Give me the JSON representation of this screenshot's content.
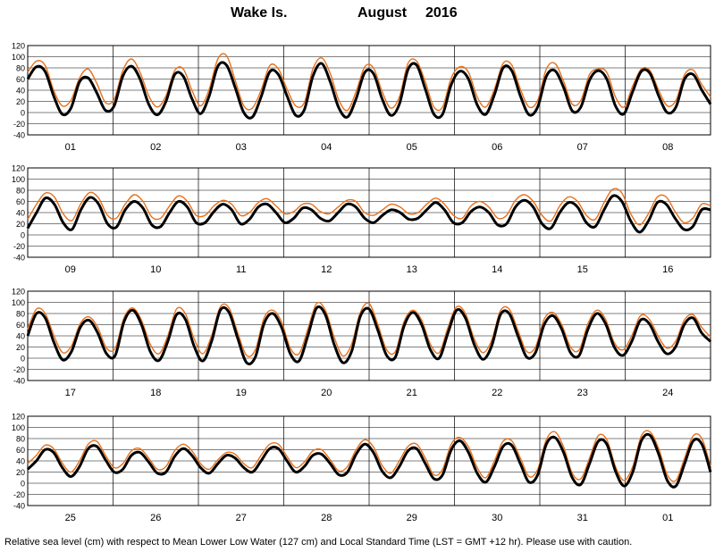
{
  "title": {
    "location": "Wake Is.",
    "month": "August",
    "year": "2016"
  },
  "footer": "Relative sea level (cm) with respect to Mean Lower Low Water (127 cm) and Local Standard Time (LST = GMT +12 hr). Please use with caution.",
  "colors": {
    "observed": "#000000",
    "predicted": "#e8701a",
    "grid": "#000000"
  },
  "chart_data": {
    "type": "line",
    "ylim": [
      -40,
      120
    ],
    "yticks": [
      -40,
      -20,
      0,
      20,
      40,
      60,
      80,
      100,
      120
    ],
    "grid": true,
    "panels": [
      {
        "day_labels": [
          "01",
          "02",
          "03",
          "04",
          "05",
          "06",
          "07",
          "08"
        ],
        "series": [
          {
            "values": [
              60,
              82,
              74,
              30,
              -3,
              8,
              55,
              62,
              35,
              4,
              12,
              65,
              83,
              60,
              15,
              -4,
              20,
              68,
              65,
              25,
              -2,
              30,
              83,
              85,
              45,
              0,
              -8,
              28,
              73,
              68,
              30,
              -5,
              5,
              65,
              88,
              55,
              8,
              -8,
              25,
              72,
              70,
              25,
              -5,
              15,
              77,
              85,
              42,
              -3,
              -3,
              50,
              74,
              60,
              14,
              -3,
              32,
              80,
              75,
              30,
              -4,
              10,
              65,
              75,
              45,
              3,
              10,
              58,
              75,
              60,
              12,
              -2,
              38,
              74,
              70,
              30,
              0,
              10,
              60,
              68,
              40,
              15
            ]
          },
          {
            "values": [
              72,
              92,
              85,
              40,
              12,
              22,
              62,
              78,
              52,
              18,
              24,
              75,
              96,
              72,
              30,
              10,
              30,
              75,
              78,
              40,
              12,
              42,
              96,
              102,
              58,
              12,
              8,
              40,
              84,
              78,
              42,
              12,
              18,
              78,
              98,
              70,
              22,
              4,
              38,
              82,
              80,
              38,
              8,
              28,
              88,
              92,
              55,
              10,
              10,
              62,
              82,
              72,
              28,
              10,
              42,
              88,
              85,
              42,
              10,
              22,
              78,
              88,
              56,
              15,
              22,
              68,
              78,
              72,
              28,
              10,
              48,
              78,
              75,
              40,
              12,
              22,
              68,
              76,
              50,
              28
            ]
          }
        ]
      },
      {
        "day_labels": [
          "09",
          "10",
          "11",
          "12",
          "13",
          "14",
          "15",
          "16"
        ],
        "series": [
          {
            "values": [
              12,
              40,
              66,
              55,
              22,
              10,
              45,
              67,
              55,
              20,
              14,
              45,
              60,
              48,
              18,
              15,
              40,
              60,
              50,
              22,
              22,
              42,
              55,
              45,
              20,
              28,
              50,
              55,
              40,
              22,
              30,
              48,
              45,
              30,
              25,
              40,
              55,
              50,
              30,
              22,
              35,
              45,
              40,
              28,
              30,
              45,
              58,
              45,
              22,
              22,
              42,
              50,
              40,
              18,
              20,
              50,
              62,
              50,
              20,
              12,
              40,
              58,
              50,
              22,
              15,
              45,
              70,
              60,
              25,
              5,
              25,
              58,
              55,
              30,
              10,
              15,
              45,
              45
            ]
          },
          {
            "values": [
              28,
              55,
              75,
              68,
              38,
              26,
              56,
              76,
              66,
              35,
              30,
              55,
              72,
              60,
              32,
              30,
              52,
              70,
              60,
              35,
              35,
              52,
              62,
              55,
              35,
              40,
              58,
              65,
              52,
              38,
              42,
              55,
              55,
              42,
              38,
              50,
              62,
              60,
              40,
              35,
              45,
              55,
              50,
              38,
              40,
              55,
              66,
              55,
              35,
              30,
              52,
              60,
              50,
              30,
              35,
              62,
              72,
              60,
              35,
              25,
              52,
              68,
              60,
              35,
              28,
              58,
              82,
              75,
              38,
              18,
              38,
              68,
              68,
              42,
              22,
              30,
              55,
              52
            ]
          }
        ]
      },
      {
        "day_labels": [
          "17",
          "18",
          "19",
          "20",
          "21",
          "22",
          "23",
          "24"
        ],
        "series": [
          {
            "values": [
              40,
              80,
              72,
              28,
              -3,
              12,
              55,
              68,
              45,
              8,
              5,
              65,
              86,
              60,
              12,
              -4,
              30,
              78,
              70,
              22,
              -5,
              30,
              86,
              82,
              35,
              -8,
              2,
              62,
              80,
              55,
              8,
              -5,
              40,
              90,
              78,
              25,
              -8,
              12,
              75,
              88,
              50,
              5,
              2,
              58,
              82,
              60,
              15,
              0,
              45,
              86,
              72,
              25,
              -2,
              22,
              78,
              80,
              40,
              2,
              10,
              60,
              76,
              52,
              10,
              5,
              52,
              80,
              62,
              20,
              5,
              30,
              68,
              62,
              30,
              8,
              20,
              60,
              72,
              45,
              30
            ]
          },
          {
            "values": [
              52,
              88,
              80,
              40,
              10,
              22,
              62,
              74,
              55,
              18,
              18,
              72,
              90,
              68,
              25,
              8,
              40,
              88,
              80,
              35,
              8,
              40,
              92,
              90,
              45,
              5,
              15,
              72,
              86,
              65,
              18,
              8,
              52,
              98,
              86,
              38,
              4,
              25,
              82,
              98,
              60,
              15,
              12,
              66,
              86,
              68,
              25,
              10,
              55,
              92,
              80,
              35,
              10,
              32,
              85,
              88,
              50,
              12,
              20,
              70,
              82,
              60,
              20,
              15,
              62,
              86,
              70,
              28,
              15,
              40,
              76,
              70,
              40,
              18,
              30,
              68,
              78,
              55,
              38
            ]
          }
        ]
      },
      {
        "day_labels": [
          "25",
          "26",
          "27",
          "28",
          "29",
          "30",
          "31",
          "01"
        ],
        "series": [
          {
            "values": [
              25,
              40,
              60,
              55,
              28,
              12,
              30,
              62,
              66,
              42,
              20,
              25,
              50,
              55,
              38,
              18,
              20,
              48,
              62,
              50,
              28,
              18,
              35,
              50,
              45,
              28,
              20,
              40,
              62,
              62,
              40,
              20,
              30,
              50,
              52,
              35,
              15,
              20,
              52,
              70,
              55,
              22,
              10,
              30,
              58,
              62,
              35,
              8,
              15,
              60,
              76,
              55,
              18,
              2,
              30,
              66,
              68,
              35,
              2,
              15,
              70,
              82,
              55,
              10,
              -2,
              35,
              75,
              70,
              22,
              -5,
              20,
              76,
              86,
              52,
              5,
              -5,
              35,
              76,
              70,
              20
            ]
          },
          {
            "values": [
              35,
              50,
              68,
              62,
              36,
              20,
              40,
              70,
              75,
              50,
              28,
              35,
              58,
              62,
              45,
              25,
              30,
              58,
              70,
              58,
              35,
              25,
              42,
              55,
              52,
              35,
              28,
              50,
              70,
              70,
              48,
              28,
              38,
              58,
              60,
              42,
              22,
              30,
              60,
              78,
              65,
              32,
              18,
              40,
              66,
              70,
              45,
              15,
              25,
              70,
              82,
              65,
              28,
              10,
              40,
              75,
              76,
              45,
              12,
              25,
              78,
              92,
              65,
              18,
              8,
              45,
              85,
              78,
              30,
              5,
              30,
              85,
              92,
              62,
              15,
              5,
              45,
              85,
              80,
              30
            ]
          }
        ]
      }
    ]
  }
}
